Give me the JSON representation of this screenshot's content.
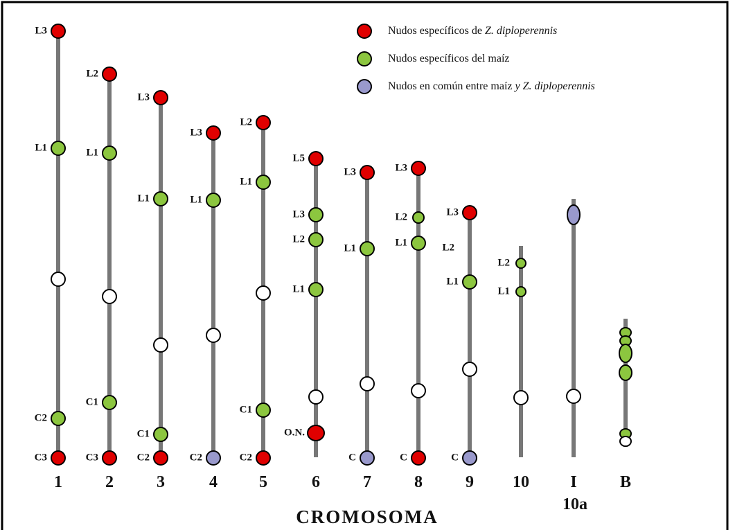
{
  "legend": [
    {
      "label": "Nudos específicos de",
      "italic": "Z. diploperennis",
      "color": "#e00000"
    },
    {
      "label": "Nudos específicos del maíz",
      "color": "#8cc63f"
    },
    {
      "label": "Nudos en común entre maíz",
      "italic": "y Z. diploperennis",
      "color": "#9999cc"
    }
  ],
  "chromosomes": [
    {
      "label": "1",
      "knobs": [
        {
          "label": "L3",
          "color": "#e00000"
        },
        {
          "label": "L1",
          "color": "#8cc63f"
        },
        {
          "color": "#ffffff"
        },
        {
          "label": "C2",
          "color": "#8cc63f"
        },
        {
          "label": "C3",
          "color": "#e00000"
        }
      ]
    },
    {
      "label": "2",
      "knobs": [
        {
          "label": "L2",
          "color": "#e00000"
        },
        {
          "label": "L1",
          "color": "#8cc63f"
        },
        {
          "color": "#ffffff"
        },
        {
          "label": "C1",
          "color": "#8cc63f"
        },
        {
          "label": "C3",
          "color": "#e00000"
        }
      ]
    },
    {
      "label": "3",
      "knobs": [
        {
          "label": "L3",
          "color": "#e00000"
        },
        {
          "label": "L1",
          "color": "#8cc63f"
        },
        {
          "color": "#ffffff"
        },
        {
          "label": "C1",
          "color": "#8cc63f"
        },
        {
          "label": "C2",
          "color": "#e00000"
        }
      ]
    },
    {
      "label": "4",
      "knobs": [
        {
          "label": "L3",
          "color": "#e00000"
        },
        {
          "label": "L1",
          "color": "#8cc63f"
        },
        {
          "color": "#ffffff"
        },
        {
          "label": "C2",
          "color": "#9999cc"
        }
      ]
    },
    {
      "label": "5",
      "knobs": [
        {
          "label": "L2",
          "color": "#e00000"
        },
        {
          "label": "L1",
          "color": "#8cc63f"
        },
        {
          "color": "#ffffff"
        },
        {
          "label": "C1",
          "color": "#8cc63f"
        },
        {
          "label": "C2",
          "color": "#e00000"
        }
      ]
    },
    {
      "label": "6",
      "knobs": [
        {
          "label": "L5",
          "color": "#e00000"
        },
        {
          "label": "L3",
          "color": "#8cc63f"
        },
        {
          "label": "L2",
          "color": "#8cc63f"
        },
        {
          "label": "L1",
          "color": "#8cc63f"
        },
        {
          "color": "#ffffff"
        },
        {
          "label": "O.N.",
          "color": "#e00000"
        }
      ]
    },
    {
      "label": "7",
      "knobs": [
        {
          "label": "L3",
          "color": "#e00000"
        },
        {
          "label": "L1",
          "color": "#8cc63f"
        },
        {
          "color": "#ffffff"
        },
        {
          "label": "C",
          "color": "#9999cc"
        }
      ]
    },
    {
      "label": "8",
      "knobs": [
        {
          "label": "L3",
          "color": "#e00000"
        },
        {
          "label": "L2",
          "color": "#8cc63f"
        },
        {
          "label": "L1",
          "color": "#8cc63f"
        },
        {
          "color": "#ffffff"
        },
        {
          "label": "C",
          "color": "#e00000"
        }
      ]
    },
    {
      "label": "9",
      "knobs": [
        {
          "label": "L3",
          "color": "#e00000"
        },
        {
          "label": "L2"
        },
        {
          "label": "L1",
          "color": "#8cc63f"
        },
        {
          "color": "#ffffff"
        },
        {
          "label": "C",
          "color": "#9999cc"
        }
      ]
    },
    {
      "label": "10",
      "knobs": [
        {
          "label": "L2",
          "color": "#8cc63f"
        },
        {
          "label": "L1",
          "color": "#8cc63f"
        },
        {
          "color": "#ffffff"
        }
      ]
    },
    {
      "label": "I",
      "sublabel": "10a",
      "knobs": [
        {
          "color": "#9999cc"
        },
        {
          "color": "#ffffff"
        }
      ]
    },
    {
      "label": "B",
      "knobs": [
        {
          "color": "#8cc63f"
        },
        {
          "color": "#8cc63f"
        },
        {
          "color": "#8cc63f"
        },
        {
          "color": "#8cc63f"
        },
        {
          "color": "#8cc63f"
        },
        {
          "color": "#ffffff"
        }
      ]
    }
  ],
  "axis_title": "CROMOSOMA"
}
